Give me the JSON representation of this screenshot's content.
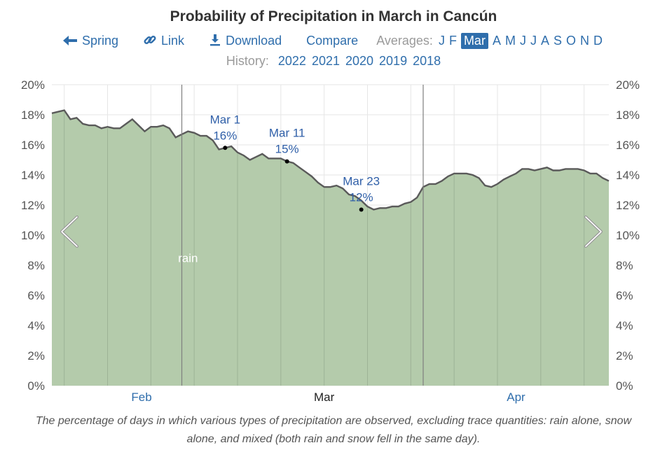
{
  "title": "Probability of Precipitation in March in Cancún",
  "nav": {
    "spring": "Spring",
    "link": "Link",
    "download": "Download",
    "compare": "Compare",
    "averages_label": "Averages:",
    "months": [
      "J",
      "F",
      "Mar",
      "A",
      "M",
      "J",
      "J",
      "A",
      "S",
      "O",
      "N",
      "D"
    ],
    "active_month": "Mar",
    "history_label": "History:",
    "years": [
      "2022",
      "2021",
      "2020",
      "2019",
      "2018"
    ]
  },
  "chart_data": {
    "type": "area",
    "title": "Probability of Precipitation in March in Cancún",
    "xlabel": "",
    "ylabel": "",
    "x_unit": "day offset from Jan 16 (0 = Jan 16, 75 = Apr 1)",
    "xlim": [
      0,
      90
    ],
    "ylim": [
      0,
      20
    ],
    "yticks": [
      0,
      2,
      4,
      6,
      8,
      10,
      12,
      14,
      16,
      18,
      20
    ],
    "ytick_labels": [
      "0%",
      "2%",
      "4%",
      "6%",
      "8%",
      "10%",
      "12%",
      "14%",
      "16%",
      "18%",
      "20%"
    ],
    "x_month_labels": [
      {
        "label": "Feb",
        "x": 14.5,
        "highlight": false
      },
      {
        "label": "Mar",
        "x": 44,
        "highlight": true
      },
      {
        "label": "Apr",
        "x": 75,
        "highlight": false
      }
    ],
    "month_boundaries": [
      21,
      60
    ],
    "series": [
      {
        "name": "rain",
        "label": "rain",
        "label_position": {
          "x": 22,
          "y": 8.2
        },
        "fill": "#b4cbab",
        "line": "#5a5a5a",
        "x": [
          0,
          1,
          2,
          3,
          4,
          5,
          6,
          7,
          8,
          9,
          10,
          11,
          12,
          13,
          14,
          15,
          16,
          17,
          18,
          19,
          20,
          21,
          22,
          23,
          24,
          25,
          26,
          27,
          28,
          29,
          30,
          31,
          32,
          33,
          34,
          35,
          36,
          37,
          38,
          39,
          40,
          41,
          42,
          43,
          44,
          45,
          46,
          47,
          48,
          49,
          50,
          51,
          52,
          53,
          54,
          55,
          56,
          57,
          58,
          59,
          60,
          61,
          62,
          63,
          64,
          65,
          66,
          67,
          68,
          69,
          70,
          71,
          72,
          73,
          74,
          75,
          76,
          77,
          78,
          79,
          80,
          81,
          82,
          83,
          84,
          85,
          86,
          87,
          88,
          89,
          90
        ],
        "values": [
          18.1,
          18.2,
          18.3,
          17.7,
          17.8,
          17.4,
          17.3,
          17.3,
          17.1,
          17.2,
          17.1,
          17.1,
          17.4,
          17.7,
          17.3,
          16.9,
          17.2,
          17.2,
          17.3,
          17.1,
          16.5,
          16.7,
          16.9,
          16.8,
          16.6,
          16.6,
          16.3,
          15.7,
          15.8,
          15.9,
          15.5,
          15.3,
          15.0,
          15.2,
          15.4,
          15.1,
          15.1,
          15.1,
          14.9,
          14.8,
          14.5,
          14.2,
          13.9,
          13.5,
          13.2,
          13.2,
          13.3,
          13.1,
          12.7,
          12.6,
          12.3,
          11.9,
          11.7,
          11.8,
          11.8,
          11.9,
          11.9,
          12.1,
          12.2,
          12.5,
          13.2,
          13.4,
          13.4,
          13.6,
          13.9,
          14.1,
          14.1,
          14.1,
          14.0,
          13.8,
          13.3,
          13.2,
          13.4,
          13.7,
          13.9,
          14.1,
          14.4,
          14.4,
          14.3,
          14.4,
          14.5,
          14.3,
          14.3,
          14.4,
          14.4,
          14.4,
          14.3,
          14.1,
          14.1,
          13.8,
          13.6
        ]
      }
    ],
    "annotations": [
      {
        "date": "Mar 1",
        "value_label": "16%",
        "x": 28,
        "y": 15.8
      },
      {
        "date": "Mar 11",
        "value_label": "15%",
        "x": 38,
        "y": 14.9
      },
      {
        "date": "Mar 23",
        "value_label": "12%",
        "x": 50,
        "y": 11.7
      }
    ]
  },
  "caption": "The percentage of days in which various types of precipitation are observed, excluding trace quantities: rain alone, snow alone, and mixed (both rain and snow fell in the same day)."
}
